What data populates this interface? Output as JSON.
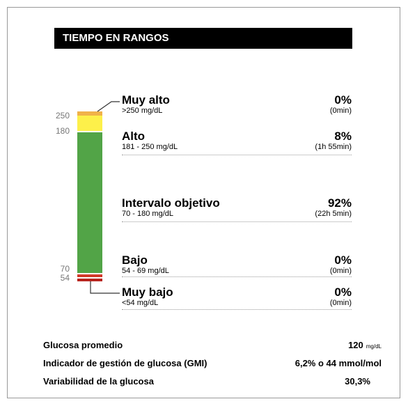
{
  "header": {
    "title": "TIEMPO EN RANGOS"
  },
  "axis_labels": [
    "250",
    "180",
    "70",
    "54"
  ],
  "ranges": [
    {
      "label": "Muy alto",
      "range": ">250 mg/dL",
      "percent": "0%",
      "duration": "(0min)"
    },
    {
      "label": "Alto",
      "range": "181 - 250 mg/dL",
      "percent": "8%",
      "duration": "(1h 55min)"
    },
    {
      "label": "Intervalo objetivo",
      "range": "70 - 180 mg/dL",
      "percent": "92%",
      "duration": "(22h 5min)"
    },
    {
      "label": "Bajo",
      "range": "54 - 69 mg/dL",
      "percent": "0%",
      "duration": "(0min)"
    },
    {
      "label": "Muy bajo",
      "range": "<54 mg/dL",
      "percent": "0%",
      "duration": "(0min)"
    }
  ],
  "stats": [
    {
      "label": "Glucosa promedio",
      "value": "120",
      "unit": "mg/dL"
    },
    {
      "label": "Indicador de gestión de glucosa (GMI)",
      "value": "6,2% o 44 mmol/mol"
    },
    {
      "label": "Variabilidad de la glucosa",
      "value": "30,3%"
    }
  ]
}
